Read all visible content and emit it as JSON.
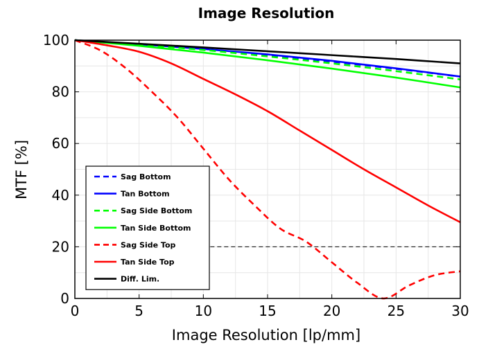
{
  "chart_data": {
    "type": "line",
    "title": "Image Resolution",
    "xlabel": "Image Resolution [lp/mm]",
    "ylabel": "MTF [%]",
    "xlim": [
      0,
      30
    ],
    "ylim": [
      0,
      100
    ],
    "xticks": [
      0,
      5,
      10,
      15,
      20,
      25,
      30
    ],
    "yticks": [
      0,
      20,
      40,
      60,
      80,
      100
    ],
    "grid": true,
    "legend_position": "lower-left",
    "series": [
      {
        "name": "Sag Bottom",
        "color": "#0000ff",
        "style": "dashed",
        "x": [
          0,
          5,
          10,
          15,
          20,
          25,
          30
        ],
        "y": [
          100,
          98.3,
          96.5,
          94.3,
          91.7,
          88.9,
          85.9
        ]
      },
      {
        "name": "Tan Bottom",
        "color": "#0000ff",
        "style": "solid",
        "x": [
          0,
          5,
          10,
          15,
          20,
          25,
          30
        ],
        "y": [
          100,
          98.4,
          96.6,
          94.5,
          92.0,
          89.1,
          85.9
        ]
      },
      {
        "name": "Sag Side Bottom",
        "color": "#00ff00",
        "style": "dashed",
        "x": [
          0,
          5,
          10,
          15,
          20,
          25,
          30
        ],
        "y": [
          100,
          98.2,
          96.2,
          93.7,
          91.0,
          88.0,
          84.8
        ]
      },
      {
        "name": "Tan Side Bottom",
        "color": "#00ff00",
        "style": "solid",
        "x": [
          0,
          5,
          10,
          15,
          20,
          25,
          30
        ],
        "y": [
          100,
          97.8,
          95.2,
          92.2,
          89.0,
          85.5,
          81.7
        ]
      },
      {
        "name": "Sag Side Top",
        "color": "#ff0000",
        "style": "dashed",
        "x": [
          0,
          2,
          4,
          6,
          8,
          10,
          12,
          14,
          16,
          18,
          20,
          22,
          24,
          26,
          28,
          30
        ],
        "y": [
          100,
          96,
          89,
          80,
          70,
          58,
          46,
          36,
          27,
          22,
          14,
          6,
          0,
          5,
          9,
          10.5
        ]
      },
      {
        "name": "Tan Side Top",
        "color": "#ff0000",
        "style": "solid",
        "x": [
          0,
          2.5,
          5,
          7.5,
          10,
          12.5,
          15,
          17.5,
          20,
          22.5,
          25,
          27.5,
          30
        ],
        "y": [
          100,
          98,
          95.5,
          91,
          85,
          79,
          72.5,
          65,
          57.5,
          50,
          43,
          36,
          29.5
        ]
      },
      {
        "name": "Diff. Lim.",
        "color": "#000000",
        "style": "solid",
        "x": [
          0,
          5,
          10,
          15,
          20,
          25,
          30
        ],
        "y": [
          100,
          98.6,
          97.2,
          95.7,
          94.2,
          92.7,
          91.0
        ]
      }
    ],
    "reference_lines": [
      {
        "axis": "y",
        "value": 20,
        "x_from": 10,
        "x_to": 30,
        "color": "#000000",
        "style": "dashed"
      }
    ]
  }
}
